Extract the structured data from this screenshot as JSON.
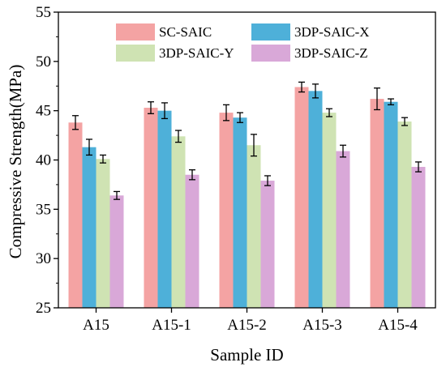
{
  "chart_data": {
    "type": "bar",
    "xlabel": "Sample ID",
    "ylabel": "Compressive Strength(MPa)",
    "ylim": [
      25,
      55
    ],
    "yticks": [
      25,
      30,
      35,
      40,
      45,
      50,
      55
    ],
    "grid": false,
    "legend_position": "top",
    "categories": [
      "A15",
      "A15-1",
      "A15-2",
      "A15-3",
      "A15-4"
    ],
    "series": [
      {
        "name": "SC-SAIC",
        "color": "#f4a3a3",
        "values": [
          43.8,
          45.3,
          44.8,
          47.4,
          46.2
        ],
        "errors": [
          0.7,
          0.6,
          0.8,
          0.5,
          1.1
        ]
      },
      {
        "name": "3DP-SAIC-X",
        "color": "#4eb0d9",
        "values": [
          41.3,
          45.0,
          44.3,
          47.0,
          45.9
        ],
        "errors": [
          0.8,
          0.8,
          0.5,
          0.7,
          0.3
        ]
      },
      {
        "name": "3DP-SAIC-Y",
        "color": "#cfe3b3",
        "values": [
          40.1,
          42.4,
          41.5,
          44.8,
          43.9
        ],
        "errors": [
          0.4,
          0.6,
          1.1,
          0.4,
          0.4
        ]
      },
      {
        "name": "3DP-SAIC-Z",
        "color": "#d9a8d8",
        "values": [
          36.4,
          38.5,
          37.9,
          40.9,
          39.3
        ],
        "errors": [
          0.4,
          0.5,
          0.5,
          0.6,
          0.5
        ]
      }
    ]
  }
}
